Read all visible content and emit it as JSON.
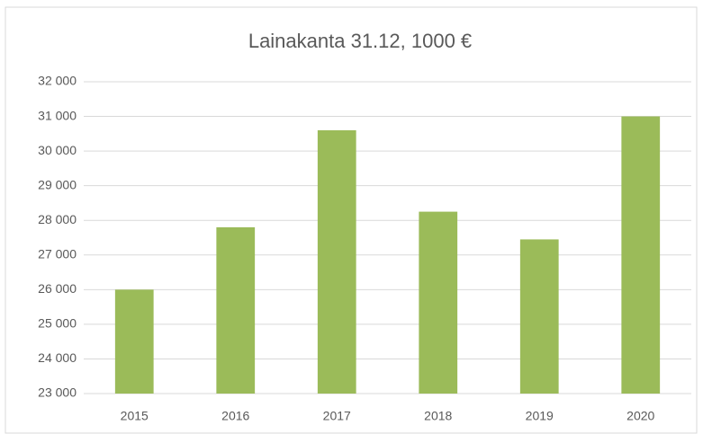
{
  "chart_data": {
    "type": "bar",
    "title": "Lainakanta 31.12, 1000 €",
    "categories": [
      "2015",
      "2016",
      "2017",
      "2018",
      "2019",
      "2020"
    ],
    "values": [
      26000,
      27800,
      30600,
      28250,
      27450,
      31000
    ],
    "color": "#9bbb59",
    "ylim": [
      23000,
      32000
    ],
    "yticks": [
      {
        "value": 23000,
        "label": "23 000"
      },
      {
        "value": 24000,
        "label": "24 000"
      },
      {
        "value": 25000,
        "label": "25 000"
      },
      {
        "value": 26000,
        "label": "26 000"
      },
      {
        "value": 27000,
        "label": "27 000"
      },
      {
        "value": 28000,
        "label": "28 000"
      },
      {
        "value": 29000,
        "label": "29 000"
      },
      {
        "value": 30000,
        "label": "30 000"
      },
      {
        "value": 31000,
        "label": "31 000"
      },
      {
        "value": 32000,
        "label": "32 000"
      }
    ],
    "grid": true
  }
}
